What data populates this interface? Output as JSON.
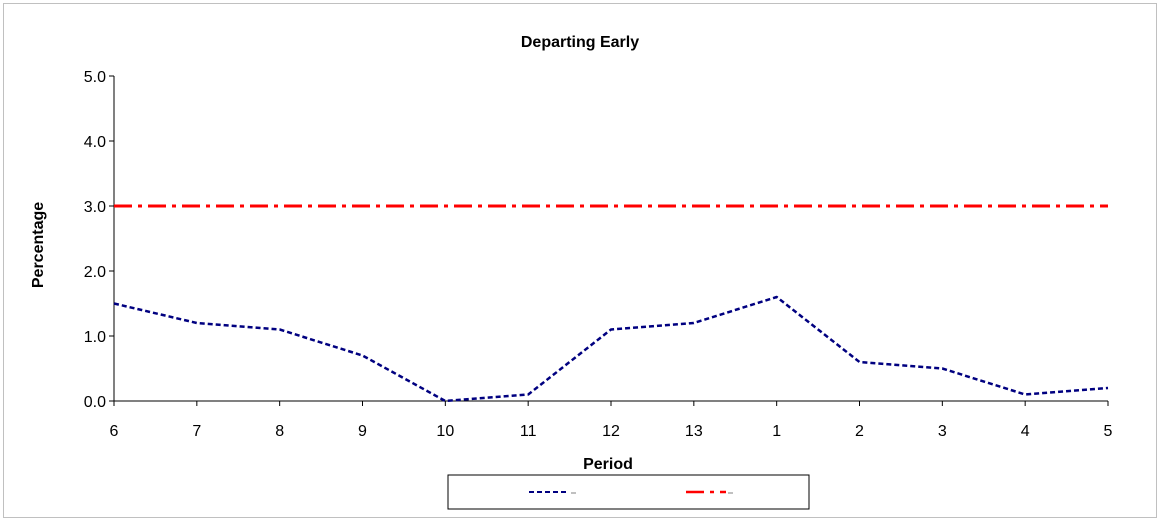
{
  "chart_data": {
    "type": "line",
    "title": "Departing Early",
    "xlabel": "Period",
    "ylabel": "Percentage",
    "categories": [
      "6",
      "7",
      "8",
      "9",
      "10",
      "11",
      "12",
      "13",
      "1",
      "2",
      "3",
      "4",
      "5"
    ],
    "ylim": [
      0,
      5
    ],
    "yticks": [
      "0.0",
      "1.0",
      "2.0",
      "3.0",
      "4.0",
      "5.0"
    ],
    "grid": false,
    "legend_position": "bottom",
    "series": [
      {
        "values": [
          1.5,
          1.2,
          1.1,
          0.7,
          0.0,
          0.1,
          1.1,
          1.2,
          1.6,
          0.6,
          0.5,
          0.1,
          0.2
        ],
        "color": "#000080",
        "style": "dashed"
      },
      {
        "values": [
          3.0,
          3.0,
          3.0,
          3.0,
          3.0,
          3.0,
          3.0,
          3.0,
          3.0,
          3.0,
          3.0,
          3.0,
          3.0
        ],
        "color": "#ff0000",
        "style": "dash-dot"
      }
    ]
  }
}
